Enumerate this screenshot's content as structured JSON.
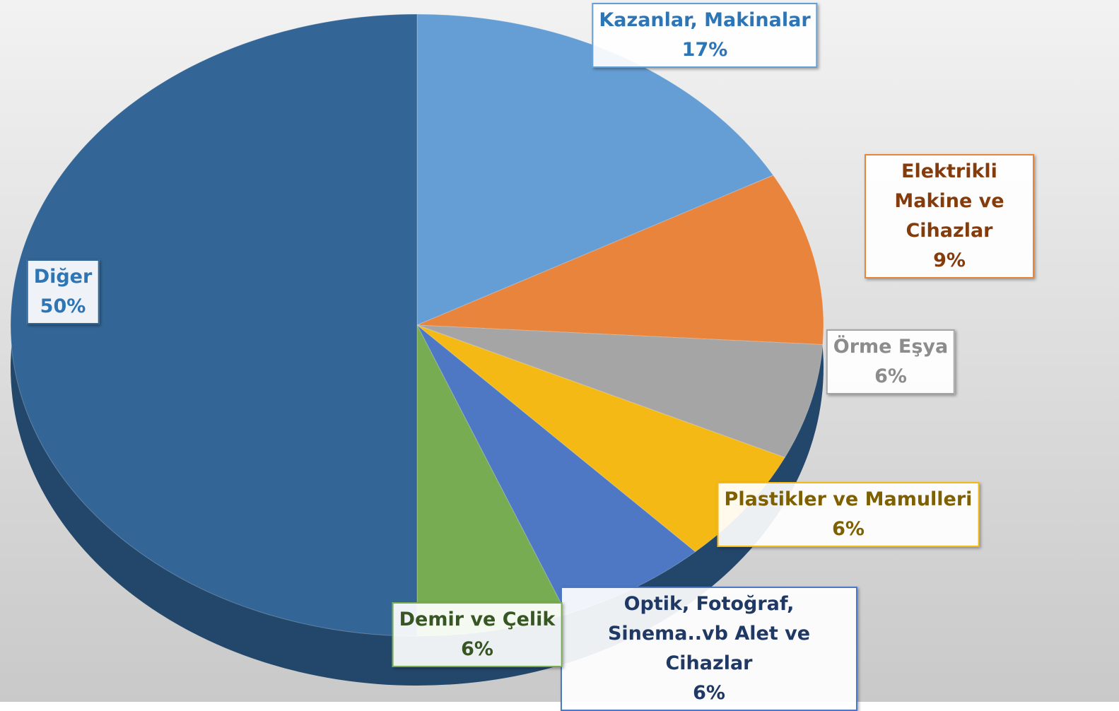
{
  "chart_data": {
    "type": "pie",
    "categories": [
      "Kazanlar, Makinalar",
      "Elektrikli Makine ve Cihazlar",
      "Örme Eşya",
      "Plastikler ve Mamulleri",
      "Optik, Fotoğraf, Sinema..vb Alet ve Cihazlar",
      "Demir ve Çelik",
      "Diğer"
    ],
    "values": [
      17,
      9,
      6,
      6,
      6,
      6,
      50
    ],
    "value_labels": [
      "17%",
      "9%",
      "6%",
      "6%",
      "6%",
      "6%",
      "50%"
    ],
    "colors": [
      "#659ed4",
      "#e8843c",
      "#a5a5a5",
      "#f5b915",
      "#4e78c4",
      "#78ac52",
      "#336696"
    ],
    "label_colors": [
      "#2e75b6",
      "#843c0c",
      "#8c8c8c",
      "#7f6000",
      "#1f3864",
      "#375623",
      "#2e75b6"
    ]
  }
}
